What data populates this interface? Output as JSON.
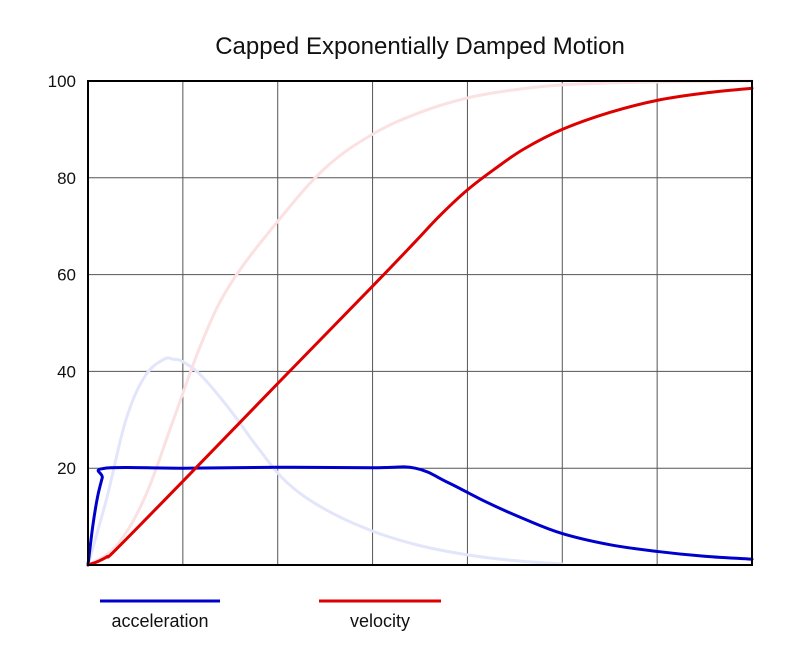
{
  "chart_data": {
    "type": "line",
    "title": "Capped Exponentially Damped Motion",
    "xlabel": "",
    "ylabel": "",
    "xlim": [
      0,
      7
    ],
    "ylim": [
      0,
      100
    ],
    "yticks": [
      "100",
      "80",
      "60",
      "40",
      "20"
    ],
    "grid": true,
    "legend_position": "bottom-left",
    "series": [
      {
        "name": "acceleration",
        "color": "#0000cc",
        "x": [
          0,
          0.05,
          0.1,
          0.15,
          0.18,
          1.0,
          2.0,
          3.0,
          3.45,
          3.8,
          4.2,
          4.6,
          5.0,
          5.5,
          6.0,
          6.5,
          7.0
        ],
        "y": [
          0,
          8,
          14,
          18,
          20,
          20,
          20.2,
          20.1,
          20,
          17,
          13,
          9.5,
          6.5,
          4.2,
          2.8,
          1.8,
          1.2
        ]
      },
      {
        "name": "velocity",
        "color": "#dd0000",
        "x": [
          0,
          0.1,
          0.2,
          0.3,
          1.0,
          2.0,
          3.0,
          3.45,
          3.7,
          4.0,
          4.3,
          4.6,
          5.0,
          5.5,
          6.0,
          6.5,
          7.0
        ],
        "y": [
          0,
          0.7,
          1.7,
          3.3,
          17.3,
          37.5,
          57.6,
          66.8,
          72,
          77.5,
          82,
          86,
          90,
          93.5,
          96,
          97.5,
          98.5
        ]
      },
      {
        "name": "",
        "color": "#e3e6fb",
        "x": [
          0,
          0.2,
          0.4,
          0.6,
          0.8,
          0.9,
          1.0,
          1.2,
          1.5,
          1.8,
          2.1,
          2.5,
          3.0,
          3.5,
          4.0,
          4.5,
          5.0
        ],
        "y": [
          0,
          14,
          30,
          39,
          42.5,
          42.5,
          42,
          39,
          32,
          24,
          17,
          11.5,
          7,
          4,
          2.1,
          0.9,
          0.2
        ]
      },
      {
        "name": "",
        "color": "#fbe1e1",
        "x": [
          0,
          0.3,
          0.6,
          0.9,
          1.2,
          1.5,
          2.0,
          2.5,
          3.0,
          3.5,
          4.0,
          4.5,
          5.0,
          5.5,
          6.0,
          6.5,
          7.0
        ],
        "y": [
          0,
          4,
          14,
          30,
          46,
          58,
          71,
          82,
          89,
          93.5,
          96.5,
          98.2,
          99.2,
          99.6,
          99.8,
          99.9,
          100
        ]
      }
    ]
  }
}
